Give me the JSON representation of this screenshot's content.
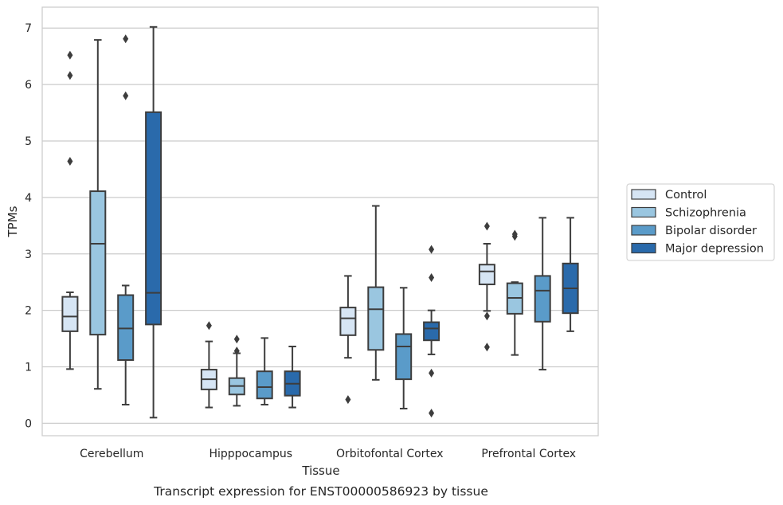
{
  "chart_data": {
    "type": "box",
    "title": "",
    "caption": "Transcript expression for ENST00000586923 by tissue",
    "xlabel": "Tissue",
    "ylabel": "TPMs",
    "ylim": [
      -0.22,
      7.37
    ],
    "yticks": [
      0,
      1,
      2,
      3,
      4,
      5,
      6,
      7
    ],
    "grid": "horizontal",
    "legend_position": "right",
    "categories": [
      "Cerebellum",
      "Hipppocampus",
      "Orbitofontal Cortex",
      "Prefrontal Cortex"
    ],
    "series": [
      {
        "name": "Control",
        "color": "#d6e5f4",
        "boxes": [
          {
            "whisker_low": 0.96,
            "q1": 1.63,
            "median": 1.89,
            "q3": 2.24,
            "whisker_high": 2.32,
            "outliers": [
              4.64,
              6.16,
              6.52
            ]
          },
          {
            "whisker_low": 0.28,
            "q1": 0.6,
            "median": 0.78,
            "q3": 0.95,
            "whisker_high": 1.45,
            "outliers": [
              1.73
            ]
          },
          {
            "whisker_low": 1.16,
            "q1": 1.56,
            "median": 1.86,
            "q3": 2.05,
            "whisker_high": 2.61,
            "outliers": [
              0.42
            ]
          },
          {
            "whisker_low": 1.99,
            "q1": 2.46,
            "median": 2.69,
            "q3": 2.81,
            "whisker_high": 3.18,
            "outliers": [
              1.35,
              1.9,
              3.49
            ]
          }
        ]
      },
      {
        "name": "Schizophrenia",
        "color": "#9ac6e0",
        "boxes": [
          {
            "whisker_low": 0.61,
            "q1": 1.57,
            "median": 3.18,
            "q3": 4.11,
            "whisker_high": 6.79,
            "outliers": []
          },
          {
            "whisker_low": 0.31,
            "q1": 0.51,
            "median": 0.66,
            "q3": 0.8,
            "whisker_high": 1.24,
            "outliers": [
              1.28,
              1.49
            ]
          },
          {
            "whisker_low": 0.77,
            "q1": 1.3,
            "median": 2.02,
            "q3": 2.41,
            "whisker_high": 3.85,
            "outliers": []
          },
          {
            "whisker_low": 1.21,
            "q1": 1.94,
            "median": 2.22,
            "q3": 2.48,
            "whisker_high": 2.5,
            "outliers": [
              3.31,
              3.35
            ]
          }
        ]
      },
      {
        "name": "Bipolar disorder",
        "color": "#5a9bc9",
        "boxes": [
          {
            "whisker_low": 0.33,
            "q1": 1.12,
            "median": 1.68,
            "q3": 2.27,
            "whisker_high": 2.44,
            "outliers": [
              5.8,
              6.81
            ]
          },
          {
            "whisker_low": 0.33,
            "q1": 0.44,
            "median": 0.64,
            "q3": 0.92,
            "whisker_high": 1.51,
            "outliers": []
          },
          {
            "whisker_low": 0.26,
            "q1": 0.78,
            "median": 1.36,
            "q3": 1.58,
            "whisker_high": 2.4,
            "outliers": []
          },
          {
            "whisker_low": 0.95,
            "q1": 1.8,
            "median": 2.35,
            "q3": 2.61,
            "whisker_high": 3.64,
            "outliers": []
          }
        ]
      },
      {
        "name": "Major depression",
        "color": "#2a6aab",
        "boxes": [
          {
            "whisker_low": 0.1,
            "q1": 1.75,
            "median": 2.31,
            "q3": 5.51,
            "whisker_high": 7.02,
            "outliers": []
          },
          {
            "whisker_low": 0.28,
            "q1": 0.49,
            "median": 0.7,
            "q3": 0.92,
            "whisker_high": 1.36,
            "outliers": []
          },
          {
            "whisker_low": 1.22,
            "q1": 1.47,
            "median": 1.68,
            "q3": 1.79,
            "whisker_high": 2.0,
            "outliers": [
              0.18,
              0.89,
              2.58,
              3.08
            ]
          },
          {
            "whisker_low": 1.63,
            "q1": 1.95,
            "median": 2.39,
            "q3": 2.83,
            "whisker_high": 3.64,
            "outliers": []
          }
        ]
      }
    ]
  }
}
